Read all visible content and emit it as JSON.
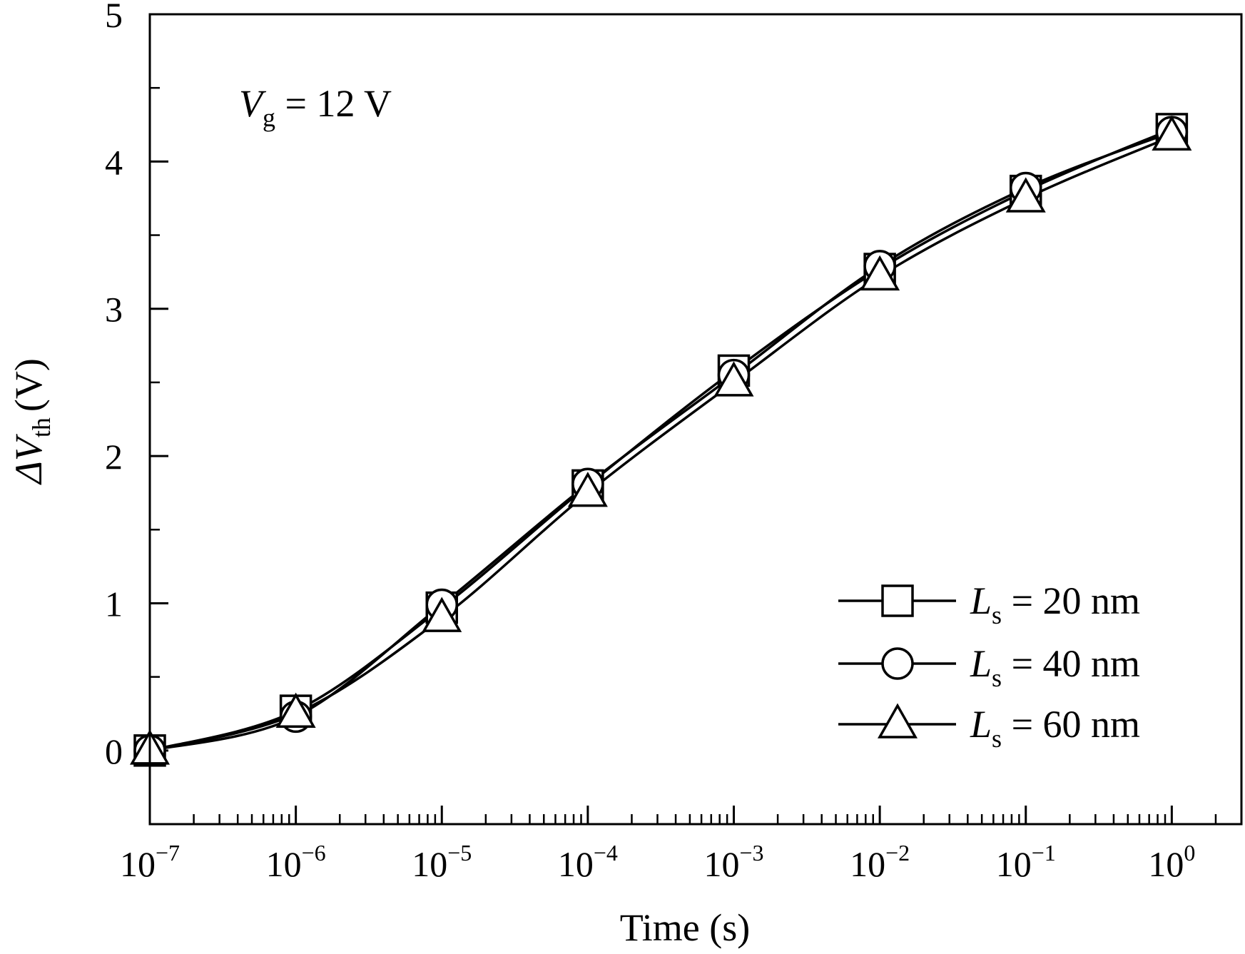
{
  "chart_data": {
    "type": "line",
    "xscale": "log",
    "xlabel": "Time (s)",
    "ylabel_symbol": "ΔV",
    "ylabel_sub": "th",
    "ylabel_unit": "(V)",
    "xlim": [
      1e-07,
      3
    ],
    "ylim": [
      -0.5,
      5
    ],
    "x_ticks": [
      {
        "base": "10",
        "exp": "−7",
        "value": 1e-07
      },
      {
        "base": "10",
        "exp": "−6",
        "value": 1e-06
      },
      {
        "base": "10",
        "exp": "−5",
        "value": 1e-05
      },
      {
        "base": "10",
        "exp": "−4",
        "value": 0.0001
      },
      {
        "base": "10",
        "exp": "−3",
        "value": 0.001
      },
      {
        "base": "10",
        "exp": "−2",
        "value": 0.01
      },
      {
        "base": "10",
        "exp": "−1",
        "value": 0.1
      },
      {
        "base": "10",
        "exp": "0",
        "value": 1
      }
    ],
    "y_ticks": [
      {
        "label": "0",
        "value": 0
      },
      {
        "label": "1",
        "value": 1
      },
      {
        "label": "2",
        "value": 2
      },
      {
        "label": "3",
        "value": 3
      },
      {
        "label": "4",
        "value": 4
      },
      {
        "label": "5",
        "value": 5
      }
    ],
    "annotation": {
      "symbol": "V",
      "sub": "g",
      "rest": " = 12 V"
    },
    "legend_position": "bottom-right",
    "x": [
      1e-07,
      1e-06,
      1e-05,
      0.0001,
      0.001,
      0.01,
      0.1,
      1
    ],
    "series": [
      {
        "symbol": "L",
        "sub": "s",
        "rest": " = 20 nm",
        "marker": "square",
        "values": [
          0.0,
          0.27,
          0.97,
          1.8,
          2.58,
          3.27,
          3.8,
          4.22
        ]
      },
      {
        "symbol": "L",
        "sub": "s",
        "rest": " = 40 nm",
        "marker": "circle",
        "values": [
          0.0,
          0.23,
          0.99,
          1.81,
          2.55,
          3.29,
          3.82,
          4.2
        ]
      },
      {
        "symbol": "L",
        "sub": "s",
        "rest": " = 60 nm",
        "marker": "triangle",
        "values": [
          0.0,
          0.25,
          0.9,
          1.75,
          2.5,
          3.22,
          3.75,
          4.17
        ]
      }
    ]
  }
}
